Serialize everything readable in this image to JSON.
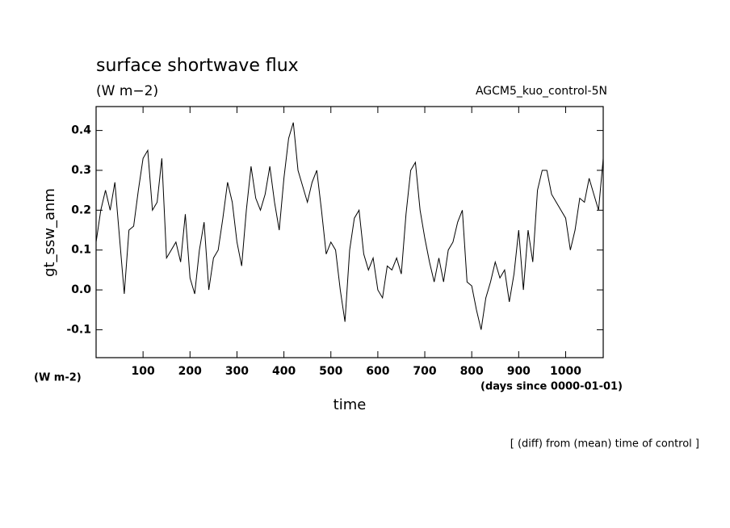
{
  "chart_data": {
    "type": "line",
    "title": "surface shortwave flux",
    "subtitle": "(W m−2)",
    "annotation": "AGCM5_kuo_control-5N",
    "ylabel": "gt_ssw_anm",
    "yunit": "(W m-2)",
    "xlabel": "time",
    "xunit": "(days since 0000-01-01)",
    "footnote": "[ (diff) from (mean) time of control ]",
    "xlim": [
      0,
      1080
    ],
    "ylim": [
      -0.17,
      0.46
    ],
    "xticks": [
      100,
      200,
      300,
      400,
      500,
      600,
      700,
      800,
      900,
      1000
    ],
    "yticks": [
      -0.1,
      {
        "value": 0,
        "label": "0.0"
      },
      0.1,
      0.2,
      0.3,
      0.4
    ],
    "x": [
      0,
      10,
      20,
      30,
      40,
      50,
      60,
      70,
      80,
      90,
      100,
      110,
      120,
      130,
      140,
      150,
      160,
      170,
      180,
      190,
      200,
      210,
      220,
      230,
      240,
      250,
      260,
      270,
      280,
      290,
      300,
      310,
      320,
      330,
      340,
      350,
      360,
      370,
      380,
      390,
      400,
      410,
      420,
      430,
      440,
      450,
      460,
      470,
      480,
      490,
      500,
      510,
      520,
      530,
      540,
      550,
      560,
      570,
      580,
      590,
      600,
      610,
      620,
      630,
      640,
      650,
      660,
      670,
      680,
      690,
      700,
      710,
      720,
      730,
      740,
      750,
      760,
      770,
      780,
      790,
      800,
      810,
      820,
      830,
      840,
      850,
      860,
      870,
      880,
      890,
      900,
      910,
      920,
      930,
      940,
      950,
      960,
      970,
      980,
      990,
      1000,
      1010,
      1020,
      1030,
      1040,
      1050,
      1060,
      1070,
      1080
    ],
    "series": [
      {
        "color": "#000000",
        "values": [
          0.12,
          0.2,
          0.25,
          0.2,
          0.27,
          0.13,
          -0.01,
          0.15,
          0.16,
          0.25,
          0.33,
          0.35,
          0.2,
          0.22,
          0.33,
          0.08,
          0.1,
          0.12,
          0.07,
          0.19,
          0.03,
          -0.01,
          0.1,
          0.17,
          0.0,
          0.08,
          0.1,
          0.18,
          0.27,
          0.22,
          0.12,
          0.06,
          0.2,
          0.31,
          0.23,
          0.2,
          0.24,
          0.31,
          0.22,
          0.15,
          0.28,
          0.38,
          0.42,
          0.3,
          0.26,
          0.22,
          0.27,
          0.3,
          0.2,
          0.09,
          0.12,
          0.1,
          0.0,
          -0.08,
          0.1,
          0.18,
          0.2,
          0.09,
          0.05,
          0.08,
          0.0,
          -0.02,
          0.06,
          0.05,
          0.08,
          0.04,
          0.19,
          0.3,
          0.32,
          0.2,
          0.13,
          0.07,
          0.02,
          0.08,
          0.02,
          0.1,
          0.12,
          0.17,
          0.2,
          0.02,
          0.01,
          -0.05,
          -0.1,
          -0.02,
          0.02,
          0.07,
          0.03,
          0.05,
          -0.03,
          0.04,
          0.15,
          0.0,
          0.15,
          0.07,
          0.25,
          0.3,
          0.3,
          0.24,
          0.22,
          0.2,
          0.18,
          0.1,
          0.15,
          0.23,
          0.22,
          0.28,
          0.24,
          0.2,
          0.33
        ]
      }
    ]
  }
}
